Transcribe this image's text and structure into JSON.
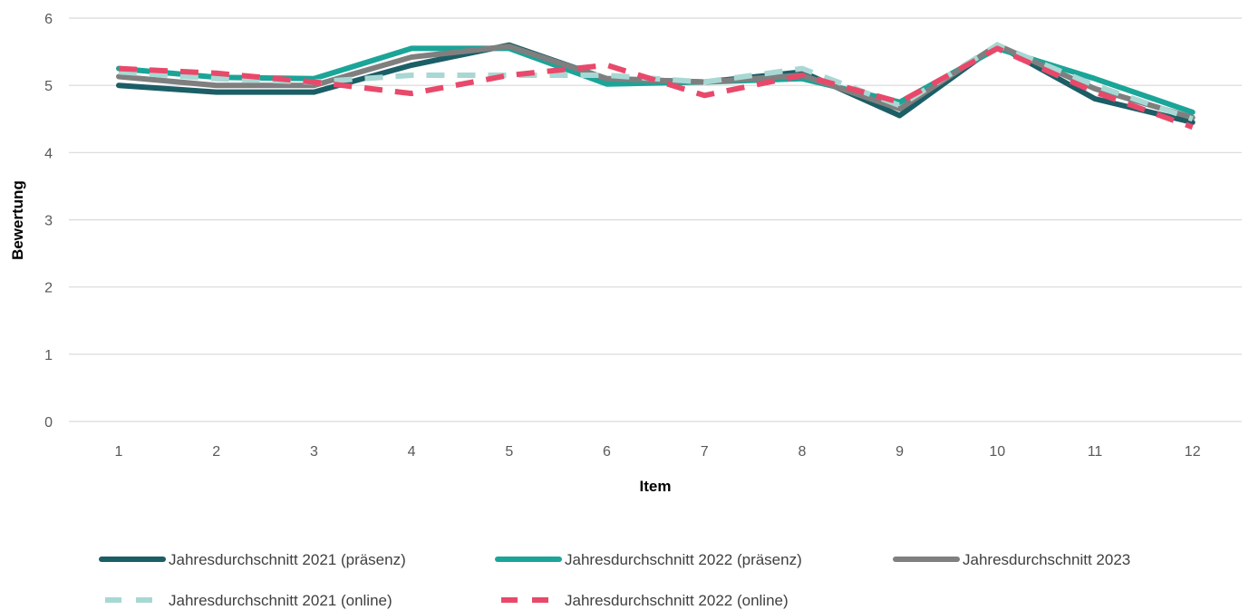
{
  "chart_data": {
    "type": "line",
    "title": "",
    "xlabel": "Item",
    "ylabel": "Bewertung",
    "ylim": [
      0,
      6
    ],
    "yticks": [
      0,
      1,
      2,
      3,
      4,
      5,
      6
    ],
    "categories": [
      "1",
      "2",
      "3",
      "4",
      "5",
      "6",
      "7",
      "8",
      "9",
      "10",
      "11",
      "12"
    ],
    "grid": true,
    "legend": "bottom",
    "series": [
      {
        "name": "Jahresdurchschnitt 2021 (präsenz)",
        "color": "#1B5E66",
        "dash": "solid",
        "values": [
          5.0,
          4.9,
          4.9,
          5.3,
          5.6,
          5.1,
          5.05,
          5.2,
          4.55,
          5.6,
          4.8,
          4.45
        ]
      },
      {
        "name": "Jahresdurchschnitt 2022 (präsenz)",
        "color": "#1AA598",
        "dash": "solid",
        "values": [
          5.25,
          5.12,
          5.1,
          5.55,
          5.55,
          5.02,
          5.05,
          5.1,
          4.75,
          5.55,
          5.1,
          4.6
        ]
      },
      {
        "name": "Jahresdurchschnitt 2023",
        "color": "#7F7F7F",
        "dash": "solid",
        "values": [
          5.13,
          5.0,
          5.0,
          5.42,
          5.58,
          5.1,
          5.05,
          5.15,
          4.65,
          5.6,
          4.95,
          4.52
        ]
      },
      {
        "name": "Jahresdurchschnitt 2021 (online)",
        "color": "#A8D8D3",
        "dash": "dashed",
        "values": [
          5.2,
          5.1,
          5.05,
          5.15,
          5.15,
          5.15,
          5.05,
          5.25,
          4.7,
          5.6,
          5.0,
          4.5
        ]
      },
      {
        "name": "Jahresdurchschnitt 2022 (online)",
        "color": "#E8496A",
        "dash": "dashed",
        "values": [
          5.25,
          5.18,
          5.05,
          4.88,
          5.15,
          5.3,
          4.85,
          5.15,
          4.75,
          5.55,
          4.9,
          4.38
        ]
      }
    ]
  }
}
